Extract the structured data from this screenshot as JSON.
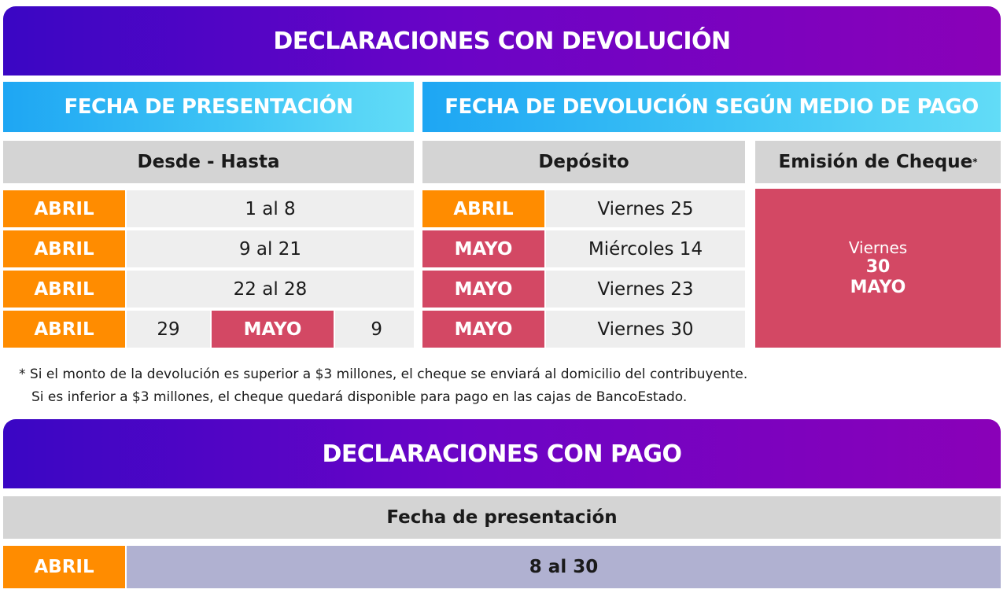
{
  "devolucion": {
    "title": "DECLARACIONES CON DEVOLUCIÓN",
    "left_header": "FECHA DE PRESENTACIÓN",
    "right_header": "FECHA DE DEVOLUCIÓN SEGÚN MEDIO DE PAGO",
    "col_desde_hasta": "Desde - Hasta",
    "col_deposito": "Depósito",
    "col_cheque": "Emisión de Cheque",
    "col_cheque_mark": "*",
    "rows": [
      {
        "month": "ABRIL",
        "range": "1 al 8",
        "dep_month": "ABRIL",
        "dep_day": "Viernes 25"
      },
      {
        "month": "ABRIL",
        "range": "9 al 21",
        "dep_month": "MAYO",
        "dep_day": "Miércoles 14"
      },
      {
        "month": "ABRIL",
        "range": "22 al 28",
        "dep_month": "MAYO",
        "dep_day": "Viernes 23"
      },
      {
        "month": "ABRIL",
        "range_start": "29",
        "range_month": "MAYO",
        "range_end": "9",
        "dep_month": "MAYO",
        "dep_day": "Viernes 30"
      }
    ],
    "cheque": {
      "weekday": "Viernes",
      "day": "30",
      "month": "MAYO"
    },
    "footnote_line1": "* Si el monto de la devolución es superior a $3 millones, el cheque se enviará al domicilio del contribuyente.",
    "footnote_line2": "Si es inferior a $3 millones, el cheque quedará disponible para pago en las cajas de BancoEstado."
  },
  "pago": {
    "title": "DECLARACIONES CON PAGO",
    "col_header": "Fecha de presentación",
    "row": {
      "month": "ABRIL",
      "range": "8 al 30"
    }
  }
}
